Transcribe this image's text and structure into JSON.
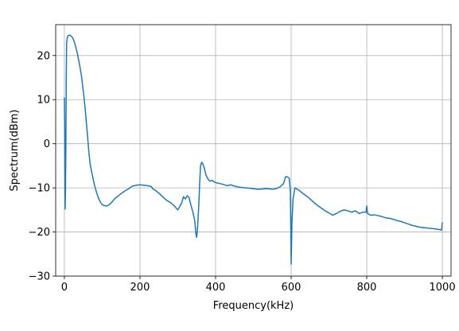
{
  "chart_data": {
    "type": "line",
    "title": "",
    "xlabel": "Frequency(kHz)",
    "ylabel": "Spectrum(dBm)",
    "xlim": [
      -23,
      1023
    ],
    "ylim": [
      -30,
      27
    ],
    "xticks": [
      0,
      200,
      400,
      600,
      800,
      1000
    ],
    "yticks": [
      -30,
      -20,
      -10,
      0,
      10,
      20
    ],
    "grid": true,
    "legend": "none",
    "series": [
      {
        "color": "#1f77b4",
        "x": [
          0,
          1,
          2,
          3,
          4,
          5,
          6,
          8,
          10,
          12,
          15,
          18,
          22,
          26,
          30,
          35,
          40,
          45,
          50,
          55,
          60,
          65,
          68,
          70,
          75,
          80,
          85,
          90,
          95,
          100,
          105,
          110,
          115,
          120,
          125,
          130,
          135,
          140,
          150,
          160,
          170,
          180,
          185,
          190,
          200,
          210,
          220,
          230,
          235,
          240,
          250,
          260,
          270,
          280,
          290,
          300,
          310,
          315,
          320,
          325,
          330,
          335,
          340,
          345,
          348,
          350,
          352,
          355,
          358,
          360,
          363,
          366,
          370,
          375,
          380,
          385,
          390,
          400,
          410,
          420,
          430,
          440,
          450,
          460,
          470,
          480,
          490,
          500,
          510,
          520,
          530,
          540,
          550,
          560,
          570,
          580,
          585,
          590,
          595,
          598,
          600,
          602,
          605,
          610,
          620,
          630,
          640,
          650,
          660,
          670,
          680,
          690,
          700,
          710,
          720,
          730,
          740,
          750,
          760,
          770,
          780,
          790,
          798,
          800,
          802,
          810,
          820,
          830,
          840,
          850,
          860,
          870,
          880,
          890,
          900,
          910,
          920,
          930,
          940,
          950,
          960,
          970,
          980,
          990,
          998,
          1000
        ],
        "y": [
          10.5,
          3,
          -14.8,
          -10,
          0,
          15,
          23,
          24.2,
          24.5,
          24.6,
          24.6,
          24.4,
          24,
          23.2,
          22,
          20.2,
          18,
          15.5,
          12,
          8,
          3,
          -2,
          -4.5,
          -5.5,
          -7.5,
          -9.5,
          -11,
          -12.3,
          -13.2,
          -13.8,
          -14,
          -14.1,
          -14,
          -13.7,
          -13.3,
          -12.8,
          -12.3,
          -12,
          -11.3,
          -10.7,
          -10.2,
          -9.6,
          -9.5,
          -9.4,
          -9.3,
          -9.4,
          -9.5,
          -9.7,
          -10.3,
          -10.5,
          -11.2,
          -12,
          -12.8,
          -13.3,
          -14,
          -15,
          -13.5,
          -12,
          -12.5,
          -11.8,
          -12.2,
          -14,
          -15.5,
          -17.5,
          -20.5,
          -21.2,
          -19.5,
          -15,
          -9,
          -5.2,
          -4.2,
          -4.5,
          -5.5,
          -7.2,
          -8,
          -8.5,
          -8.3,
          -8.8,
          -9,
          -9.2,
          -9.5,
          -9.3,
          -9.6,
          -9.8,
          -9.9,
          -10,
          -10.1,
          -10.2,
          -10.3,
          -10.3,
          -10.2,
          -10.2,
          -10.3,
          -10.2,
          -9.8,
          -9,
          -7.5,
          -7.5,
          -7.8,
          -11,
          -27.3,
          -18,
          -12.5,
          -10,
          -10.5,
          -11.2,
          -11.8,
          -12.5,
          -13.3,
          -14,
          -14.6,
          -15.2,
          -15.7,
          -16.2,
          -15.8,
          -15.3,
          -15,
          -15.2,
          -15.5,
          -15.2,
          -15.8,
          -15.5,
          -15.5,
          -14.1,
          -15.8,
          -16.2,
          -16.1,
          -16.3,
          -16.5,
          -16.8,
          -16.9,
          -17.1,
          -17.4,
          -17.6,
          -17.9,
          -18.2,
          -18.5,
          -18.7,
          -18.9,
          -19,
          -19.1,
          -19.2,
          -19.3,
          -19.4,
          -19.6,
          -17.8
        ]
      }
    ]
  }
}
